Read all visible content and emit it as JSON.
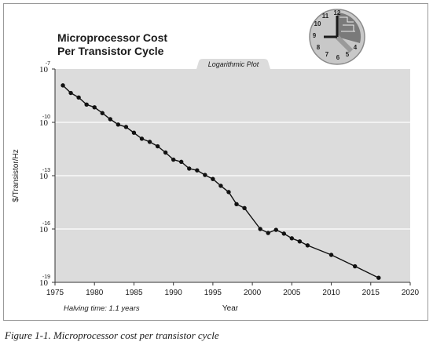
{
  "chart_data": {
    "type": "line",
    "title": [
      "Microprocessor Cost",
      "Per Transistor Cycle"
    ],
    "subtitle": "Logarithmic Plot",
    "xlabel": "Year",
    "ylabel": "$/Transistor/Hz",
    "annotation": "Halving time: 1.1 years",
    "y_scale": "log",
    "ylim": [
      1e-19,
      1e-07
    ],
    "xlim": [
      1975,
      2020
    ],
    "x_ticks": [
      1975,
      1980,
      1985,
      1990,
      1995,
      2000,
      2005,
      2010,
      2015,
      2020
    ],
    "x_tick_labels": [
      "1975",
      "1980",
      "1985",
      "1990",
      "1995",
      "2000",
      "2005",
      "2010",
      "2015",
      "2020"
    ],
    "y_ticks": [
      {
        "base": "10",
        "exp": "-7"
      },
      {
        "base": "10",
        "exp": "-10"
      },
      {
        "base": "10",
        "exp": "-13"
      },
      {
        "base": "10",
        "exp": "-16"
      },
      {
        "base": "10",
        "exp": "-19"
      }
    ],
    "grid": true,
    "series": [
      {
        "x": [
          1976,
          1977,
          1978,
          1979,
          1980,
          1981,
          1982,
          1983,
          1984,
          1985,
          1986,
          1987,
          1988,
          1989,
          1990,
          1991,
          1992,
          1993,
          1994,
          1995,
          1996,
          1997,
          1998,
          1999,
          2001,
          2002,
          2003,
          2004,
          2005,
          2006,
          2007,
          2010,
          2013,
          2016
        ],
        "y": [
          1.2e-08,
          4.5e-09,
          2.5e-09,
          1e-09,
          7e-10,
          3.3e-10,
          1.5e-10,
          7.5e-11,
          5.5e-11,
          2.6e-11,
          1.2e-11,
          8e-12,
          4.5e-12,
          2e-12,
          8e-13,
          6e-13,
          2.5e-13,
          2e-13,
          1.1e-13,
          6.5e-14,
          2.7e-14,
          1.2e-14,
          2.5e-15,
          1.5e-15,
          1e-16,
          6e-17,
          9e-17,
          5.5e-17,
          3e-17,
          2e-17,
          1.2e-17,
          3.5e-18,
          8e-19,
          1.8e-19
        ]
      }
    ]
  },
  "caption": "Figure 1-1. Microprocessor cost per transistor cycle",
  "logo": {
    "kind": "clock-icon",
    "numerals": [
      "12",
      "11",
      "10",
      "9",
      "8",
      "7",
      "6",
      "5",
      "4"
    ]
  },
  "colors": {
    "plot_bg": "#dcdcdc",
    "line": "#111111",
    "grid": "#ffffff",
    "text": "#1a1a1a"
  }
}
